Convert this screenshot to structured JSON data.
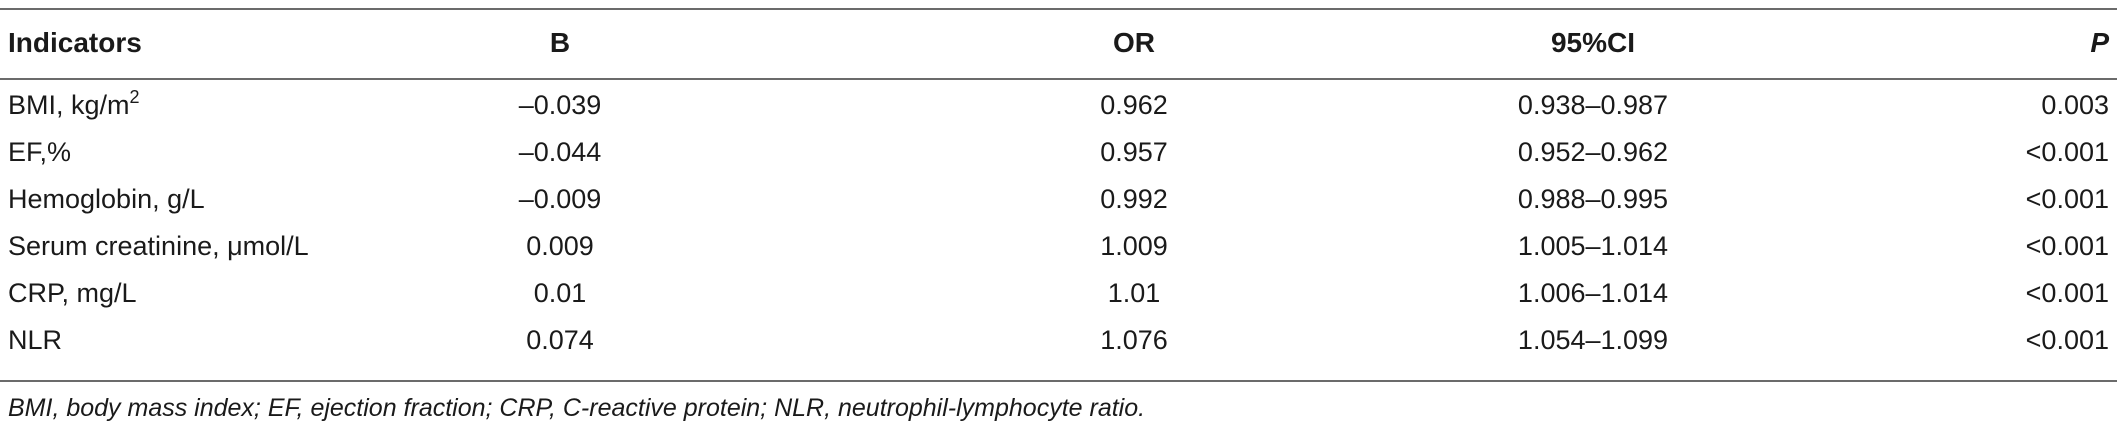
{
  "table": {
    "headers": {
      "indicators": "Indicators",
      "b": "B",
      "or": "OR",
      "ci": "95%CI",
      "p": "P"
    },
    "rows": [
      {
        "indicator": "BMI, kg/m",
        "indicator_sup": "2",
        "b": "–0.039",
        "or": "0.962",
        "ci": "0.938–0.987",
        "p": "0.003"
      },
      {
        "indicator": "EF,%",
        "indicator_sup": "",
        "b": "–0.044",
        "or": "0.957",
        "ci": "0.952–0.962",
        "p": "<0.001"
      },
      {
        "indicator": "Hemoglobin, g/L",
        "indicator_sup": "",
        "b": "–0.009",
        "or": "0.992",
        "ci": "0.988–0.995",
        "p": "<0.001"
      },
      {
        "indicator": "Serum creatinine, μmol/L",
        "indicator_sup": "",
        "b": "0.009",
        "or": "1.009",
        "ci": "1.005–1.014",
        "p": "<0.001"
      },
      {
        "indicator": "CRP, mg/L",
        "indicator_sup": "",
        "b": "0.01",
        "or": "1.01",
        "ci": "1.006–1.014",
        "p": "<0.001"
      },
      {
        "indicator": "NLR",
        "indicator_sup": "",
        "b": "0.074",
        "or": "1.076",
        "ci": "1.054–1.099",
        "p": "<0.001"
      }
    ],
    "footnote": "BMI, body mass index; EF, ejection fraction; CRP, C-reactive protein; NLR, neutrophil-lymphocyte ratio."
  }
}
